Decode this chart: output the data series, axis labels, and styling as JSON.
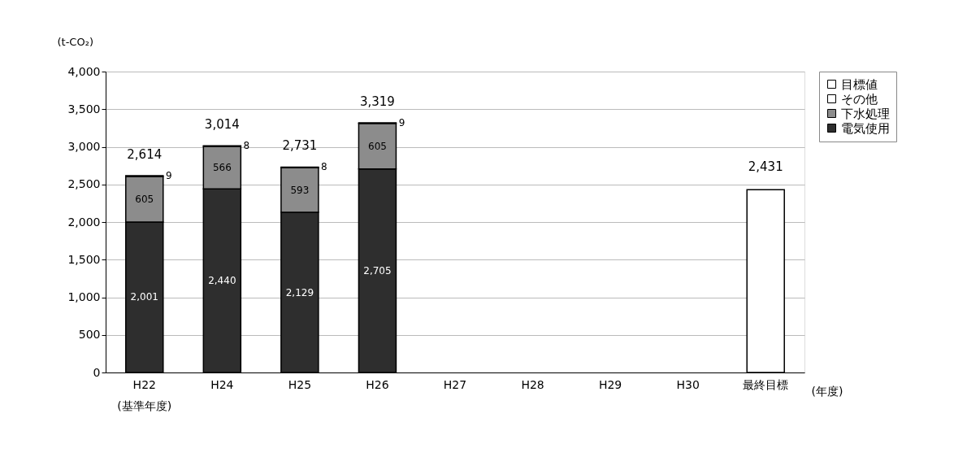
{
  "chart_data": {
    "type": "bar",
    "stacked": true,
    "ylabel": "(t-CO₂)",
    "xlabel": "(年度)",
    "categories": [
      "H22",
      "H24",
      "H25",
      "H26",
      "H27",
      "H28",
      "H29",
      "H30",
      "最終目標"
    ],
    "series": [
      {
        "name": "電気使用",
        "color": "#2e2e2e",
        "values": [
          2001,
          2440,
          2129,
          2705,
          null,
          null,
          null,
          null,
          null
        ],
        "value_labels": [
          "2,001",
          "2,440",
          "2,129",
          "2,705",
          null,
          null,
          null,
          null,
          null
        ]
      },
      {
        "name": "下水処理",
        "color": "#8c8c8c",
        "values": [
          605,
          566,
          593,
          605,
          null,
          null,
          null,
          null,
          null
        ],
        "value_labels": [
          "605",
          "566",
          "593",
          "605",
          null,
          null,
          null,
          null,
          null
        ]
      },
      {
        "name": "その他",
        "color": "#ffffff",
        "values": [
          9,
          8,
          8,
          9,
          null,
          null,
          null,
          null,
          null
        ],
        "value_labels": [
          "9",
          "8",
          "8",
          "9",
          null,
          null,
          null,
          null,
          null
        ]
      },
      {
        "name": "目標値",
        "color": "#ffffff",
        "values": [
          null,
          null,
          null,
          null,
          null,
          null,
          null,
          null,
          2431
        ],
        "value_labels": [
          null,
          null,
          null,
          null,
          null,
          null,
          null,
          null,
          "2,431"
        ]
      }
    ],
    "totals": [
      "2,614",
      "3,014",
      "2,731",
      "3,319",
      null,
      null,
      null,
      null,
      null
    ],
    "ylim": [
      0,
      4000
    ],
    "yticks": [
      0,
      {
        "value": 500,
        "label": "500"
      },
      {
        "value": 1000,
        "label": "1,000"
      },
      {
        "value": 1500,
        "label": "1,500"
      },
      {
        "value": 2000,
        "label": "2,000"
      },
      {
        "value": 2500,
        "label": "2,500"
      },
      {
        "value": 3000,
        "label": "3,000"
      },
      {
        "value": 3500,
        "label": "3,500"
      },
      {
        "value": 4000,
        "label": "4,000"
      }
    ],
    "grid": "y",
    "legend": "right",
    "annotations": [
      "(基準年度)"
    ]
  }
}
